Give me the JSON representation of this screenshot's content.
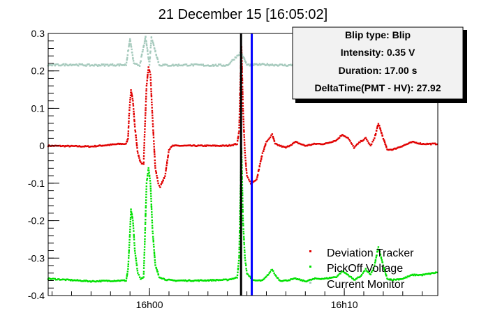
{
  "chart_data": {
    "type": "scatter",
    "title": "21 December 15 [16:05:02]",
    "xlabel": "",
    "ylabel": "",
    "x_unit": "minutes",
    "xlim": [
      -5.2,
      14.8
    ],
    "ylim": [
      -0.4,
      0.3
    ],
    "x_ticks": [
      {
        "value": 0,
        "label": "16h00"
      },
      {
        "value": 10,
        "label": "16h10"
      }
    ],
    "y_ticks": [
      {
        "value": 0.3,
        "label": "0.3"
      },
      {
        "value": 0.2,
        "label": "0.2"
      },
      {
        "value": 0.1,
        "label": "0.1"
      },
      {
        "value": 0,
        "label": "0"
      },
      {
        "value": -0.1,
        "label": "-0.1"
      },
      {
        "value": -0.2,
        "label": "-0.2"
      },
      {
        "value": -0.3,
        "label": "-0.3"
      },
      {
        "value": -0.4,
        "label": "-0.4"
      }
    ],
    "vertical_markers": [
      {
        "x": 4.7,
        "color": "#000000"
      },
      {
        "x": 5.25,
        "color": "#0000ff"
      }
    ],
    "stats_box": {
      "lines": [
        "Blip type: Blip",
        "Intensity: 0.35 V",
        "Duration: 17.00 s",
        "DeltaTime(PMT - HV): 27.92"
      ]
    },
    "legend_position": "bottom-right",
    "series": [
      {
        "name": "Deviation Tracker",
        "color": "#e00000",
        "points": [
          [
            -5.2,
            0.0
          ],
          [
            -3.0,
            -0.002
          ],
          [
            -1.5,
            0.005
          ],
          [
            -1.2,
            0.005
          ],
          [
            -1.1,
            0.02
          ],
          [
            -1.05,
            0.08
          ],
          [
            -0.95,
            0.15
          ],
          [
            -0.85,
            0.12
          ],
          [
            -0.75,
            0.05
          ],
          [
            -0.6,
            -0.02
          ],
          [
            -0.45,
            -0.045
          ],
          [
            -0.3,
            -0.05
          ],
          [
            -0.25,
            0.03
          ],
          [
            -0.15,
            0.16
          ],
          [
            -0.05,
            0.21
          ],
          [
            0.05,
            0.19
          ],
          [
            0.15,
            0.08
          ],
          [
            0.3,
            -0.06
          ],
          [
            0.45,
            -0.1
          ],
          [
            0.55,
            -0.11
          ],
          [
            0.8,
            -0.08
          ],
          [
            1.0,
            -0.01
          ],
          [
            1.2,
            0.0
          ],
          [
            2.5,
            0.0
          ],
          [
            4.0,
            0.0
          ],
          [
            4.5,
            0.005
          ],
          [
            4.6,
            0.04
          ],
          [
            4.68,
            0.2
          ],
          [
            4.72,
            0.27
          ],
          [
            4.8,
            0.1
          ],
          [
            4.9,
            -0.02
          ],
          [
            5.0,
            -0.08
          ],
          [
            5.2,
            -0.1
          ],
          [
            5.5,
            -0.09
          ],
          [
            5.8,
            -0.02
          ],
          [
            6.0,
            0.01
          ],
          [
            6.3,
            0.03
          ],
          [
            6.45,
            0.005
          ],
          [
            6.7,
            0.0
          ],
          [
            7.0,
            -0.005
          ],
          [
            7.5,
            0.01
          ],
          [
            8.0,
            0.0
          ],
          [
            8.5,
            0.005
          ],
          [
            9.0,
            0.005
          ],
          [
            9.6,
            0.015
          ],
          [
            9.9,
            0.03
          ],
          [
            10.2,
            0.02
          ],
          [
            10.5,
            -0.005
          ],
          [
            10.8,
            0.01
          ],
          [
            11.1,
            0.02
          ],
          [
            11.35,
            0.0
          ],
          [
            11.55,
            0.02
          ],
          [
            11.75,
            0.06
          ],
          [
            12.0,
            0.02
          ],
          [
            12.2,
            -0.01
          ],
          [
            12.5,
            -0.01
          ],
          [
            13.0,
            0.0
          ],
          [
            13.5,
            0.01
          ],
          [
            14.0,
            0.005
          ],
          [
            14.8,
            0.005
          ]
        ]
      },
      {
        "name": "PickOff Voltage",
        "color": "#00e000",
        "points": [
          [
            -5.2,
            -0.355
          ],
          [
            -3.0,
            -0.362
          ],
          [
            -1.5,
            -0.36
          ],
          [
            -1.2,
            -0.36
          ],
          [
            -1.1,
            -0.33
          ],
          [
            -1.0,
            -0.23
          ],
          [
            -0.95,
            -0.17
          ],
          [
            -0.85,
            -0.2
          ],
          [
            -0.75,
            -0.28
          ],
          [
            -0.6,
            -0.34
          ],
          [
            -0.45,
            -0.355
          ],
          [
            -0.3,
            -0.35
          ],
          [
            -0.25,
            -0.27
          ],
          [
            -0.15,
            -0.1
          ],
          [
            -0.05,
            -0.06
          ],
          [
            0.05,
            -0.1
          ],
          [
            0.15,
            -0.22
          ],
          [
            0.3,
            -0.32
          ],
          [
            0.5,
            -0.35
          ],
          [
            0.8,
            -0.357
          ],
          [
            1.2,
            -0.36
          ],
          [
            2.5,
            -0.36
          ],
          [
            4.0,
            -0.358
          ],
          [
            4.5,
            -0.352
          ],
          [
            4.6,
            -0.3
          ],
          [
            4.68,
            -0.1
          ],
          [
            4.72,
            0.0
          ],
          [
            4.8,
            -0.2
          ],
          [
            4.9,
            -0.3
          ],
          [
            5.0,
            -0.34
          ],
          [
            5.3,
            -0.36
          ],
          [
            5.8,
            -0.36
          ],
          [
            6.0,
            -0.35
          ],
          [
            6.3,
            -0.33
          ],
          [
            6.45,
            -0.345
          ],
          [
            6.7,
            -0.36
          ],
          [
            7.0,
            -0.36
          ],
          [
            7.5,
            -0.355
          ],
          [
            8.0,
            -0.362
          ],
          [
            8.5,
            -0.355
          ],
          [
            9.0,
            -0.355
          ],
          [
            9.6,
            -0.35
          ],
          [
            9.9,
            -0.335
          ],
          [
            10.2,
            -0.345
          ],
          [
            10.5,
            -0.358
          ],
          [
            10.8,
            -0.35
          ],
          [
            11.1,
            -0.33
          ],
          [
            11.35,
            -0.345
          ],
          [
            11.55,
            -0.32
          ],
          [
            11.75,
            -0.27
          ],
          [
            12.0,
            -0.32
          ],
          [
            12.2,
            -0.355
          ],
          [
            12.5,
            -0.358
          ],
          [
            13.0,
            -0.355
          ],
          [
            13.5,
            -0.345
          ],
          [
            14.0,
            -0.345
          ],
          [
            14.8,
            -0.338
          ]
        ]
      },
      {
        "name": "Current Monitor",
        "color": "#a6cabd",
        "points": [
          [
            -5.2,
            0.215
          ],
          [
            -4.0,
            0.217
          ],
          [
            -3.0,
            0.215
          ],
          [
            -2.0,
            0.216
          ],
          [
            -1.2,
            0.216
          ],
          [
            -1.0,
            0.285
          ],
          [
            -0.8,
            0.218
          ],
          [
            -0.5,
            0.215
          ],
          [
            -0.2,
            0.29
          ],
          [
            0.0,
            0.217
          ],
          [
            0.1,
            0.29
          ],
          [
            0.5,
            0.216
          ],
          [
            1.0,
            0.215
          ],
          [
            2.0,
            0.216
          ],
          [
            3.0,
            0.215
          ],
          [
            4.0,
            0.215
          ],
          [
            4.7,
            0.25
          ],
          [
            5.0,
            0.216
          ],
          [
            6.0,
            0.217
          ],
          [
            7.0,
            0.215
          ],
          [
            8.0,
            0.216
          ],
          [
            9.0,
            0.217
          ],
          [
            10.0,
            0.216
          ],
          [
            11.0,
            0.215
          ],
          [
            12.0,
            0.216
          ],
          [
            13.0,
            0.215
          ],
          [
            14.0,
            0.216
          ],
          [
            14.8,
            0.215
          ]
        ]
      }
    ]
  }
}
